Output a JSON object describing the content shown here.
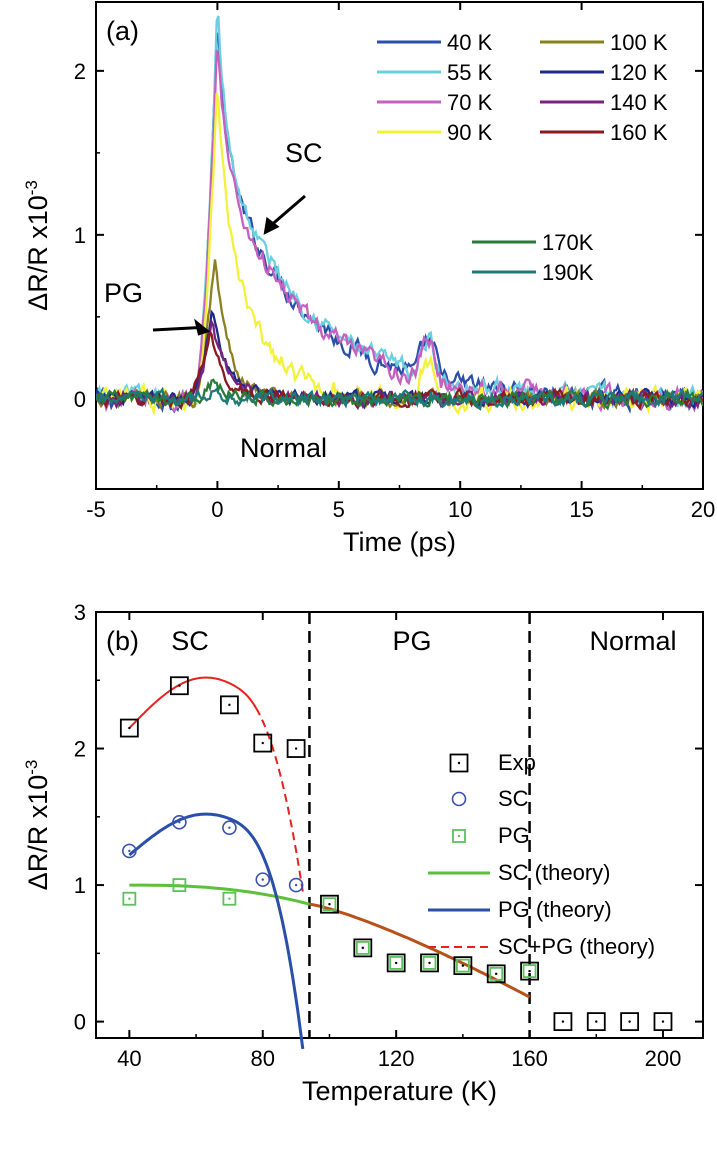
{
  "chart_data": [
    {
      "type": "line",
      "panel_label": "(a)",
      "xlabel": "Time (ps)",
      "ylabel": "ΔR/R x10",
      "ylabel_exp": "-3",
      "xlim": [
        -5,
        20
      ],
      "ylim": [
        -0.55,
        2.42
      ],
      "xticks": [
        -5,
        0,
        5,
        10,
        15,
        20
      ],
      "yticks": [
        0,
        1,
        2
      ],
      "series": [
        {
          "name": "40 K",
          "color": "#2a4fa8",
          "peak": 2.28,
          "pulse_frac": 0.35,
          "tau": 3.6,
          "time_of_peak": 0.0
        },
        {
          "name": "55 K",
          "color": "#6ccfe0",
          "peak": 2.38,
          "pulse_frac": 0.35,
          "tau": 3.6,
          "time_of_peak": 0.0
        },
        {
          "name": "70 K",
          "color": "#c660c0",
          "peak": 2.22,
          "pulse_frac": 0.35,
          "tau": 3.5,
          "time_of_peak": 0.0
        },
        {
          "name": "90 K",
          "color": "#f2f23a",
          "peak": 1.92,
          "pulse_frac": 0.35,
          "tau": 1.5,
          "time_of_peak": 0.0
        },
        {
          "name": "100 K",
          "color": "#8a8020",
          "peak": 0.87,
          "pulse_frac": 0.4,
          "tau": 0.8,
          "time_of_peak": -0.1
        },
        {
          "name": "120 K",
          "color": "#1e2a8a",
          "peak": 0.55,
          "pulse_frac": 0.45,
          "tau": 0.9,
          "time_of_peak": -0.2
        },
        {
          "name": "140 K",
          "color": "#7a2280",
          "peak": 0.46,
          "pulse_frac": 0.45,
          "tau": 0.9,
          "time_of_peak": -0.2
        },
        {
          "name": "160 K",
          "color": "#8a1a20",
          "peak": 0.4,
          "pulse_frac": 0.45,
          "tau": 0.9,
          "time_of_peak": -0.3
        },
        {
          "name": "170K",
          "color": "#2a7a3a",
          "peak": 0.12,
          "pulse_frac": 0.6,
          "tau": 0.6,
          "time_of_peak": -0.1
        },
        {
          "name": "190K",
          "color": "#1e7a78",
          "peak": 0.05,
          "pulse_frac": 0.8,
          "tau": 0.5,
          "time_of_peak": 0.0
        }
      ],
      "annotations": [
        {
          "text": "SC",
          "arrow_to": [
            1.9,
            1.0
          ]
        },
        {
          "text": "PG",
          "arrow_to": [
            -0.3,
            0.41
          ]
        },
        {
          "text": "Normal"
        }
      ]
    },
    {
      "type": "scatter",
      "panel_label": "(b)",
      "xlabel": "Temperature (K)",
      "ylabel": "ΔR/R x10",
      "ylabel_exp": "-3",
      "xlim": [
        30,
        212
      ],
      "ylim": [
        -0.12,
        3.0
      ],
      "xticks": [
        40,
        80,
        120,
        160,
        200
      ],
      "yticks": [
        0,
        1,
        2,
        3
      ],
      "regions": [
        "SC",
        "PG",
        "Normal"
      ],
      "boundaries_K": [
        94,
        160
      ],
      "series": [
        {
          "name": "Exp",
          "color": "#000000",
          "marker": "square",
          "x": [
            40,
            55,
            70,
            80,
            90,
            100,
            110,
            120,
            130,
            140,
            150,
            160,
            170,
            180,
            190,
            200
          ],
          "y": [
            2.15,
            2.46,
            2.32,
            2.04,
            2.0,
            0.86,
            0.54,
            0.43,
            0.43,
            0.41,
            0.35,
            0.37,
            0.0,
            0.0,
            0.0,
            0.0
          ]
        },
        {
          "name": "SC",
          "color": "#3a50b0",
          "marker": "circle",
          "x": [
            40,
            55,
            70,
            80,
            90
          ],
          "y": [
            1.25,
            1.46,
            1.42,
            1.04,
            1.0
          ]
        },
        {
          "name": "PG",
          "color": "#5cc05c",
          "marker": "square",
          "x": [
            40,
            55,
            70,
            100,
            110,
            120,
            130,
            140,
            150,
            160
          ],
          "y": [
            0.9,
            1.0,
            0.9,
            0.86,
            0.54,
            0.43,
            0.43,
            0.41,
            0.35,
            0.37
          ]
        },
        {
          "name": "SC (theory)",
          "color": "#5cc03a",
          "style": "solid"
        },
        {
          "name": "PG (theory)",
          "color": "#2a4fa8",
          "style": "solid"
        },
        {
          "name": "SC+PG (theory)",
          "color": "#e82020",
          "style": "dashed"
        }
      ],
      "theory_pg_high_T_color": "#b8501a"
    }
  ]
}
